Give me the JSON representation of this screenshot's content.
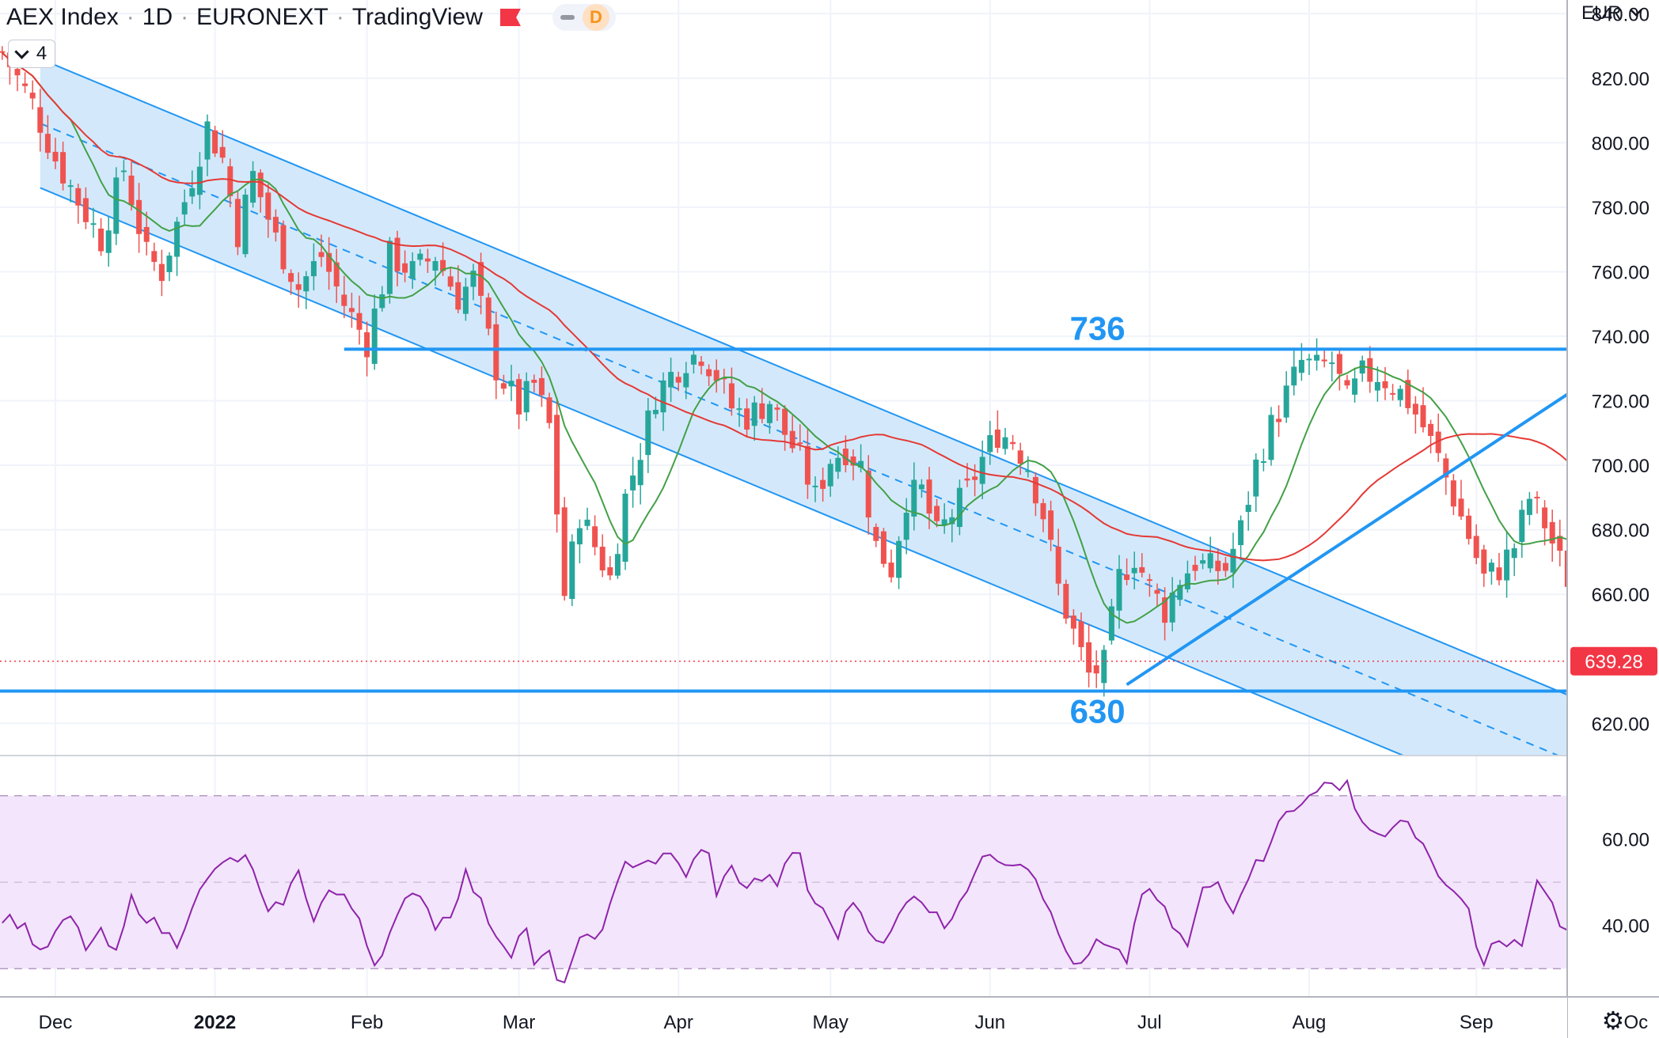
{
  "header": {
    "symbol": "AEX Index",
    "interval": "1D",
    "exchange": "EURONEXT",
    "platform": "TradingView",
    "badge": "D"
  },
  "indicator_toggle": {
    "count": "4"
  },
  "colors": {
    "up": "#26a69a",
    "down": "#ef5350",
    "channel_line": "#2196f3",
    "channel_fill": "#d3e9fb",
    "ma_fast": "#43a047",
    "ma_slow": "#e53935",
    "rsi_line": "#8e24aa",
    "rsi_band": "#f3e5fb",
    "price_label": "#f23645"
  },
  "chart_data": [
    {
      "type": "candlestick",
      "currency": "EUR",
      "y_axis": {
        "ylim": [
          611,
          844
        ],
        "ticks": [
          "840.00",
          "820.00",
          "800.00",
          "780.00",
          "760.00",
          "740.00",
          "720.00",
          "700.00",
          "680.00",
          "660.00",
          "620.00"
        ]
      },
      "x_axis": {
        "labels": [
          {
            "label": "Dec",
            "index": 0
          },
          {
            "label": "2022",
            "index": 21
          },
          {
            "label": "Feb",
            "index": 41
          },
          {
            "label": "Mar",
            "index": 61
          },
          {
            "label": "Apr",
            "index": 82
          },
          {
            "label": "May",
            "index": 102
          },
          {
            "label": "Jun",
            "index": 123
          },
          {
            "label": "Jul",
            "index": 144
          },
          {
            "label": "Aug",
            "index": 165
          },
          {
            "label": "Sep",
            "index": 187
          },
          {
            "label": "Oc",
            "index": 208
          }
        ]
      },
      "last_price": {
        "value": 639.28,
        "label": "639.28"
      },
      "series": [
        {
          "name": "",
          "anchors": [
            [
              -7,
              828
            ],
            [
              -3,
              812
            ],
            [
              0,
              795
            ],
            [
              3,
              782
            ],
            [
              6,
              770
            ],
            [
              9,
              792
            ],
            [
              12,
              765
            ],
            [
              14,
              760
            ],
            [
              17,
              782
            ],
            [
              20,
              805
            ],
            [
              22,
              795
            ],
            [
              24,
              772
            ],
            [
              26,
              790
            ],
            [
              29,
              770
            ],
            [
              32,
              755
            ],
            [
              35,
              765
            ],
            [
              38,
              750
            ],
            [
              41,
              738
            ],
            [
              44,
              765
            ],
            [
              47,
              760
            ],
            [
              50,
              765
            ],
            [
              53,
              752
            ],
            [
              55,
              758
            ],
            [
              58,
              730
            ],
            [
              61,
              718
            ],
            [
              63,
              725
            ],
            [
              65,
              712
            ],
            [
              67,
              660
            ],
            [
              69,
              685
            ],
            [
              71,
              675
            ],
            [
              73,
              665
            ],
            [
              75,
              690
            ],
            [
              77,
              705
            ],
            [
              79,
              722
            ],
            [
              81,
              728
            ],
            [
              83,
              733
            ],
            [
              85,
              735
            ],
            [
              87,
              728
            ],
            [
              89,
              718
            ],
            [
              91,
              715
            ],
            [
              94,
              720
            ],
            [
              96,
              710
            ],
            [
              98,
              702
            ],
            [
              100,
              690
            ],
            [
              102,
              702
            ],
            [
              104,
              705
            ],
            [
              106,
              700
            ],
            [
              108,
              675
            ],
            [
              110,
              668
            ],
            [
              112,
              690
            ],
            [
              114,
              692
            ],
            [
              116,
              678
            ],
            [
              118,
              685
            ],
            [
              120,
              692
            ],
            [
              122,
              702
            ],
            [
              124,
              710
            ],
            [
              126,
              708
            ],
            [
              128,
              700
            ],
            [
              130,
              685
            ],
            [
              132,
              662
            ],
            [
              134,
              648
            ],
            [
              136,
              635
            ],
            [
              138,
              638
            ],
            [
              140,
              665
            ],
            [
              142,
              672
            ],
            [
              144,
              662
            ],
            [
              146,
              655
            ],
            [
              148,
              665
            ],
            [
              150,
              670
            ],
            [
              152,
              668
            ],
            [
              154,
              668
            ],
            [
              156,
              680
            ],
            [
              158,
              700
            ],
            [
              160,
              712
            ],
            [
              162,
              722
            ],
            [
              164,
              732
            ],
            [
              166,
              730
            ],
            [
              168,
              732
            ],
            [
              170,
              720
            ],
            [
              172,
              728
            ],
            [
              174,
              728
            ],
            [
              176,
              725
            ],
            [
              178,
              720
            ],
            [
              180,
              712
            ],
            [
              182,
              702
            ],
            [
              184,
              690
            ],
            [
              186,
              678
            ],
            [
              188,
              665
            ],
            [
              190,
              668
            ],
            [
              192,
              675
            ],
            [
              194,
              690
            ],
            [
              196,
              682
            ],
            [
              198,
              670
            ],
            [
              200,
              660
            ],
            [
              202,
              657
            ],
            [
              204,
              635
            ]
          ]
        }
      ],
      "moving_averages": [
        {
          "name": "",
          "period": 10,
          "color": "#43a047"
        },
        {
          "name": "",
          "period": 35,
          "color": "#e53935"
        }
      ],
      "drawings": [
        {
          "type": "descending_channel",
          "upper": [
            [
              -2,
              826
            ],
            [
              208,
              620
            ]
          ],
          "mid": [
            [
              -2,
              806
            ],
            [
              208,
              600
            ]
          ],
          "lower": [
            [
              -2,
              786
            ],
            [
              208,
              580
            ]
          ]
        },
        {
          "type": "horizontal",
          "value": 736,
          "label": "736"
        },
        {
          "type": "horizontal",
          "value": 630,
          "label": "630"
        },
        {
          "type": "trendline",
          "points": [
            [
              141,
              632
            ],
            [
              208,
              736
            ]
          ]
        },
        {
          "type": "highlight_ellipse",
          "index": 204,
          "center": 646,
          "span": 28
        }
      ]
    },
    {
      "type": "line",
      "indicator": "RSI",
      "y_axis": {
        "ylim": [
          20,
          76
        ],
        "ticks": [
          "60.00",
          "40.00"
        ]
      },
      "bands": {
        "upper": 70,
        "middle": 50,
        "lower": 30
      },
      "series": [
        {
          "name": "",
          "anchors": [
            [
              -7,
              42
            ],
            [
              -4,
              40
            ],
            [
              -2,
              33
            ],
            [
              0,
              38
            ],
            [
              2,
              42
            ],
            [
              4,
              35
            ],
            [
              6,
              38
            ],
            [
              8,
              33
            ],
            [
              10,
              46
            ],
            [
              12,
              42
            ],
            [
              14,
              39
            ],
            [
              16,
              36
            ],
            [
              18,
              45
            ],
            [
              20,
              50
            ],
            [
              22,
              55
            ],
            [
              24,
              54
            ],
            [
              25,
              57
            ],
            [
              26,
              52
            ],
            [
              28,
              42
            ],
            [
              30,
              46
            ],
            [
              32,
              52
            ],
            [
              34,
              42
            ],
            [
              36,
              48
            ],
            [
              38,
              46
            ],
            [
              40,
              42
            ],
            [
              42,
              31
            ],
            [
              44,
              38
            ],
            [
              46,
              45
            ],
            [
              48,
              48
            ],
            [
              50,
              40
            ],
            [
              52,
              43
            ],
            [
              54,
              52
            ],
            [
              56,
              45
            ],
            [
              58,
              38
            ],
            [
              60,
              34
            ],
            [
              62,
              40
            ],
            [
              63,
              30
            ],
            [
              65,
              34
            ],
            [
              66,
              26
            ],
            [
              67,
              28
            ],
            [
              69,
              36
            ],
            [
              71,
              37
            ],
            [
              73,
              44
            ],
            [
              75,
              54
            ],
            [
              77,
              55
            ],
            [
              79,
              55
            ],
            [
              81,
              56
            ],
            [
              83,
              52
            ],
            [
              85,
              57
            ],
            [
              86,
              56
            ],
            [
              87,
              48
            ],
            [
              89,
              53
            ],
            [
              91,
              49
            ],
            [
              93,
              51
            ],
            [
              95,
              50
            ],
            [
              97,
              56
            ],
            [
              98,
              57
            ],
            [
              99,
              48
            ],
            [
              101,
              43
            ],
            [
              103,
              38
            ],
            [
              105,
              46
            ],
            [
              107,
              40
            ],
            [
              109,
              35
            ],
            [
              111,
              42
            ],
            [
              113,
              48
            ],
            [
              115,
              44
            ],
            [
              117,
              40
            ],
            [
              119,
              46
            ],
            [
              121,
              52
            ],
            [
              123,
              57
            ],
            [
              125,
              55
            ],
            [
              127,
              55
            ],
            [
              129,
              52
            ],
            [
              131,
              42
            ],
            [
              133,
              34
            ],
            [
              135,
              30
            ],
            [
              137,
              36
            ],
            [
              139,
              34
            ],
            [
              141,
              32
            ],
            [
              143,
              48
            ],
            [
              145,
              46
            ],
            [
              147,
              40
            ],
            [
              149,
              35
            ],
            [
              151,
              48
            ],
            [
              153,
              50
            ],
            [
              155,
              44
            ],
            [
              157,
              52
            ],
            [
              159,
              56
            ],
            [
              161,
              65
            ],
            [
              163,
              66
            ],
            [
              165,
              70
            ],
            [
              167,
              74
            ],
            [
              169,
              70
            ],
            [
              170,
              73
            ],
            [
              172,
              64
            ],
            [
              174,
              61
            ],
            [
              176,
              62
            ],
            [
              178,
              64
            ],
            [
              180,
              59
            ],
            [
              182,
              50
            ],
            [
              184,
              48
            ],
            [
              186,
              43
            ],
            [
              188,
              30
            ],
            [
              189,
              36
            ],
            [
              191,
              35
            ],
            [
              193,
              36
            ],
            [
              195,
              50
            ],
            [
              197,
              44
            ],
            [
              199,
              38
            ],
            [
              201,
              36
            ],
            [
              203,
              40
            ],
            [
              205,
              29
            ]
          ]
        }
      ]
    }
  ]
}
